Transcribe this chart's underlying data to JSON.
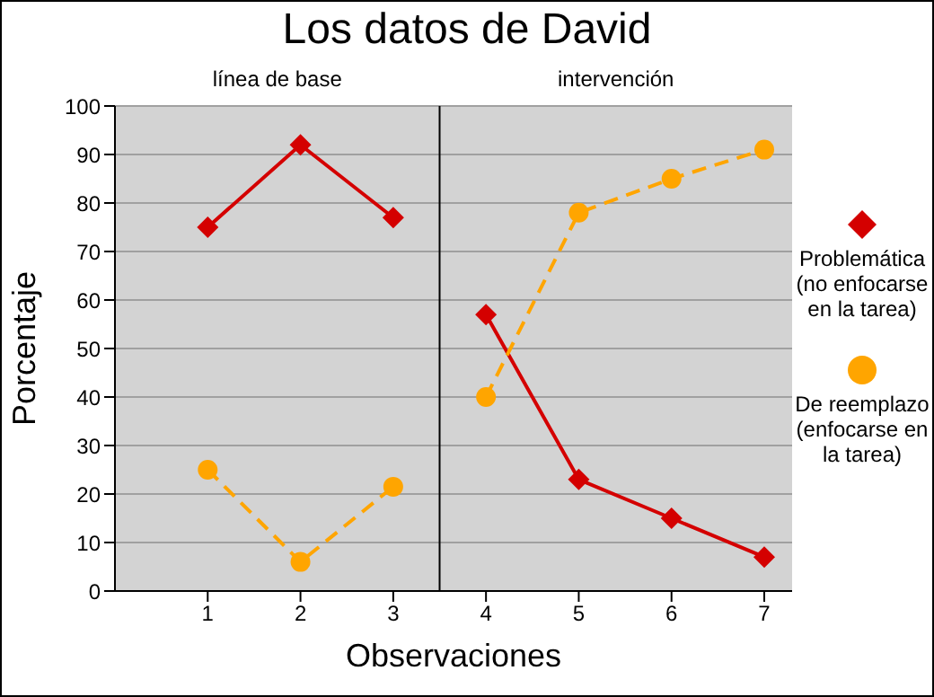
{
  "chart_data": {
    "type": "line",
    "title": "Los datos de David",
    "xlabel": "Observaciones",
    "ylabel": "Porcentaje",
    "x": [
      1,
      2,
      3,
      3.5,
      4,
      5,
      6,
      7
    ],
    "xlim": [
      0,
      7.3
    ],
    "xticks": [
      1,
      2,
      3,
      4,
      5,
      6,
      7
    ],
    "ylim": [
      0,
      100
    ],
    "yticks": [
      0,
      10,
      20,
      30,
      40,
      50,
      60,
      70,
      80,
      90,
      100
    ],
    "grid": "y",
    "legend": "right",
    "series": [
      {
        "name": "Problemática (no enfocarse en la tarea)",
        "color": "#d40000",
        "marker": "diamond",
        "line_style": "solid",
        "values": [
          75,
          92,
          77,
          null,
          57,
          23,
          15,
          7
        ]
      },
      {
        "name": "De reemplazo (enfocarse en la tarea)",
        "color": "#ffa500",
        "marker": "circle",
        "line_style": "dashed",
        "values": [
          25,
          6,
          21.5,
          null,
          40,
          78,
          85,
          91
        ]
      }
    ],
    "ref_lines": [
      {
        "axis": "x",
        "value": 3.5,
        "color": "#000000"
      }
    ],
    "annotations": [
      "línea de base",
      "intervención"
    ]
  }
}
